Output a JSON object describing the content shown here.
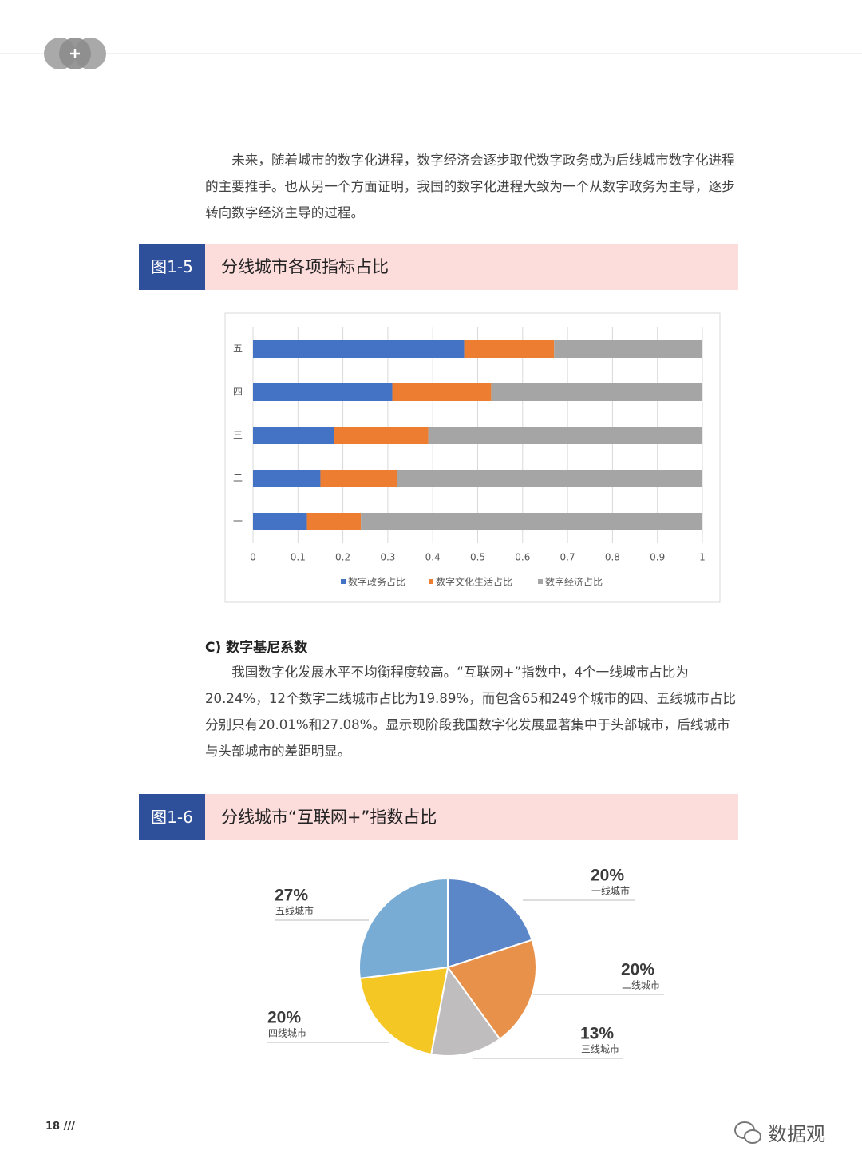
{
  "paragraphs": [
    "未来，随着城市的数字化进程，数字经济会逐步取代数字政务成为后线城市数字化进程的主要推手。也从另一个方面证明，我国的数字化进程大致为一个从数字政务为主导，逐步转向数字经济主导的过程。",
    "我国数字化发展水平不均衡程度较高。“互联网+”指数中，4个一线城市占比为20.24%，12个数字二线城市占比为19.89%，而包含65和249个城市的四、五线城市占比分别只有20.01%和27.08%。显示现阶段我国数字化发展显著集中于头部城市，后线城市与头部城市的差距明显。"
  ],
  "section_heading": "C) 数字基尼系数",
  "page_number": "18 ///",
  "watermark": "数据观",
  "chart_data": [
    {
      "type": "bar",
      "figure": "图1-5",
      "title": "分线城市各项指标占比",
      "orientation": "horizontal",
      "stacked": true,
      "categories": [
        "一",
        "二",
        "三",
        "四",
        "五"
      ],
      "series": [
        {
          "name": "数字政务占比",
          "color": "#4472c4",
          "values": [
            0.12,
            0.15,
            0.18,
            0.31,
            0.47
          ]
        },
        {
          "name": "数字文化生活占比",
          "color": "#ed7d31",
          "values": [
            0.12,
            0.17,
            0.21,
            0.22,
            0.2
          ]
        },
        {
          "name": "数字经济占比",
          "color": "#a5a5a5",
          "values": [
            0.76,
            0.68,
            0.61,
            0.47,
            0.33
          ]
        }
      ],
      "xlim": [
        0,
        1
      ],
      "xticks": [
        0,
        0.1,
        0.2,
        0.3,
        0.4,
        0.5,
        0.6,
        0.7,
        0.8,
        0.9,
        1
      ],
      "grid": true,
      "legend": "bottom"
    },
    {
      "type": "pie",
      "figure": "图1-6",
      "title": "分线城市“互联网+”指数占比",
      "categories": [
        "一线城市",
        "二线城市",
        "三线城市",
        "四线城市",
        "五线城市"
      ],
      "values": [
        20,
        20,
        13,
        20,
        27
      ],
      "value_labels": [
        "20%",
        "20%",
        "13%",
        "20%",
        "27%"
      ],
      "colors": [
        "#5b86c8",
        "#e8914a",
        "#bfbdbe",
        "#f5c725",
        "#79acd4"
      ]
    }
  ]
}
